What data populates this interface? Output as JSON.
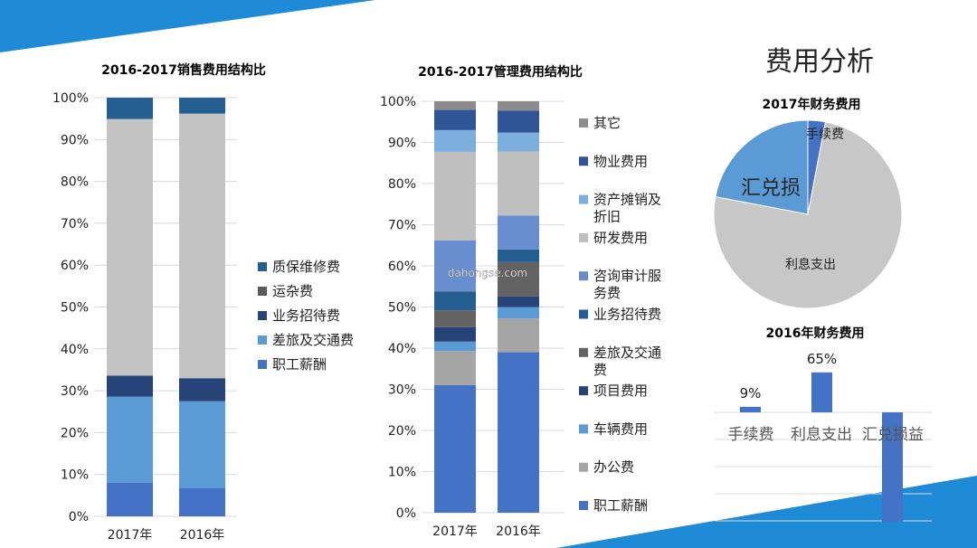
{
  "slide": {
    "title": "费用分析",
    "watermark": "dahongse.com",
    "accent_color": "#1f8ad6"
  },
  "chart_data": [
    {
      "type": "bar",
      "stacked": "percent",
      "title": "2016-2017销售费用结构比",
      "categories": [
        "2017年",
        "2016年"
      ],
      "yticks": [
        "0%",
        "10%",
        "20%",
        "30%",
        "40%",
        "50%",
        "60%",
        "70%",
        "80%",
        "90%",
        "100%"
      ],
      "ylim": [
        0,
        100
      ],
      "grid": true,
      "legend": "right",
      "series": [
        {
          "name": "职工薪酬",
          "values": [
            8,
            6.7
          ],
          "color": "#4472c4"
        },
        {
          "name": "差旅及交通费",
          "values": [
            20.6,
            20.8
          ],
          "color": "#5b9bd5"
        },
        {
          "name": "业务招待费",
          "values": [
            5,
            5.5
          ],
          "color": "#264478"
        },
        {
          "name": "",
          "values": [
            61.3,
            63.2
          ],
          "color": "#c3c3c3"
        },
        {
          "name": "运杂费",
          "values": [
            0,
            0
          ],
          "color": "#5a5a5a"
        },
        {
          "name": "质保维修费",
          "values": [
            5.1,
            3.8
          ],
          "color": "#255e91"
        }
      ],
      "legend_order": [
        "质保维修费",
        "运杂费",
        "业务招待费",
        "差旅及交通费",
        "职工薪酬"
      ]
    },
    {
      "type": "bar",
      "stacked": "percent",
      "title": "2016-2017管理费用结构比",
      "categories": [
        "2017年",
        "2016年"
      ],
      "yticks": [
        "0%",
        "10%",
        "20%",
        "30%",
        "40%",
        "50%",
        "60%",
        "70%",
        "80%",
        "90%",
        "100%"
      ],
      "ylim": [
        0,
        100
      ],
      "grid": true,
      "legend": "right",
      "series": [
        {
          "name": "职工薪酬",
          "values": [
            31,
            39
          ],
          "color": "#4472c4"
        },
        {
          "name": "办公费",
          "values": [
            8.3,
            8.2
          ],
          "color": "#a5a5a5"
        },
        {
          "name": "车辆费用",
          "values": [
            2.3,
            2.8
          ],
          "color": "#5b9bd5"
        },
        {
          "name": "项目费用",
          "values": [
            3.5,
            2.6
          ],
          "color": "#264478"
        },
        {
          "name": "差旅及交通费",
          "values": [
            4.1,
            8.3
          ],
          "color": "#636363"
        },
        {
          "name": "业务招待费",
          "values": [
            4.6,
            3.1
          ],
          "color": "#255e91"
        },
        {
          "name": "咨询审计服务费",
          "values": [
            12.4,
            8.2
          ],
          "color": "#698ed0"
        },
        {
          "name": "研发费用",
          "values": [
            21.5,
            15.6
          ],
          "color": "#bfbfbf"
        },
        {
          "name": "资产摊销及折旧",
          "values": [
            5.3,
            4.6
          ],
          "color": "#7cafdd"
        },
        {
          "name": "物业费用",
          "values": [
            4.9,
            5.3
          ],
          "color": "#2f5597"
        },
        {
          "name": "其它",
          "values": [
            2.1,
            2.3
          ],
          "color": "#8c8c8c"
        }
      ],
      "legend_order": [
        "其它",
        "物业费用",
        "资产摊销及折旧",
        "研发费用",
        "咨询审计服务费",
        "业务招待费",
        "差旅及交通费",
        "项目费用",
        "车辆费用",
        "办公费",
        "职工薪酬"
      ]
    },
    {
      "type": "pie",
      "title": "2017年财务费用",
      "categories": [
        "手续费",
        "利息支出",
        "汇兑损"
      ],
      "values": [
        3,
        75,
        22
      ],
      "colors": [
        "#4472c4",
        "#c7c7c7",
        "#5b9bd5"
      ],
      "legend": "none"
    },
    {
      "type": "bar",
      "title": "2016年财务费用",
      "categories": [
        "手续费",
        "利息支出",
        "汇兑损益"
      ],
      "values": [
        9,
        65,
        -178
      ],
      "data_labels": [
        "9%",
        "65%",
        ""
      ],
      "color": "#4472c4",
      "ylim": [
        -185,
        70
      ],
      "grid": true,
      "legend": "none"
    }
  ]
}
